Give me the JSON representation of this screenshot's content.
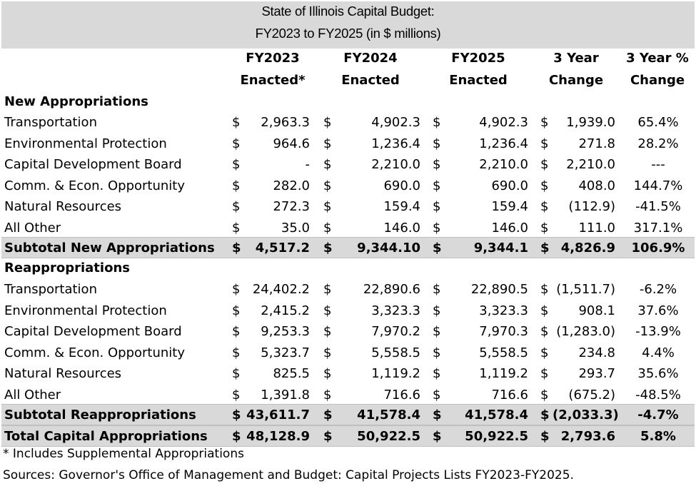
{
  "title_line1": "State of Illinois Capital Budget:",
  "title_line2": "FY2023 to FY2025 (in $ millions)",
  "headers": [
    {
      "line1": "FY2023",
      "line2": "Enacted*"
    },
    {
      "line1": "FY2024",
      "line2": "Enacted"
    },
    {
      "line1": "FY2025",
      "line2": "Enacted"
    },
    {
      "line1": "3 Year",
      "line2": "Change"
    },
    {
      "line1": "3 Year %",
      "line2": "Change"
    }
  ],
  "currency_symbol": "$",
  "section_new": "New Appropriations",
  "section_reapprop": "Reappropriations",
  "new_rows": [
    {
      "label": "Transportation",
      "fy23": "2,963.3",
      "fy24": "4,902.3",
      "fy25": "4,902.3",
      "chg": "1,939.0",
      "pct": "65.4%"
    },
    {
      "label": "Environmental Protection",
      "fy23": "964.6",
      "fy24": "1,236.4",
      "fy25": "1,236.4",
      "chg": "271.8",
      "pct": "28.2%"
    },
    {
      "label": "Capital Development Board",
      "fy23": "-",
      "fy24": "2,210.0",
      "fy25": "2,210.0",
      "chg": "2,210.0",
      "pct": "---"
    },
    {
      "label": "Comm. & Econ. Opportunity",
      "fy23": "282.0",
      "fy24": "690.0",
      "fy25": "690.0",
      "chg": "408.0",
      "pct": "144.7%"
    },
    {
      "label": "Natural Resources",
      "fy23": "272.3",
      "fy24": "159.4",
      "fy25": "159.4",
      "chg": "(112.9)",
      "pct": "-41.5%"
    },
    {
      "label": "All Other",
      "fy23": "35.0",
      "fy24": "146.0",
      "fy25": "146.0",
      "chg": "111.0",
      "pct": "317.1%"
    }
  ],
  "subtotal_new": {
    "label": "Subtotal New Appropriations",
    "fy23": "4,517.2",
    "fy24": "9,344.10",
    "fy25": "9,344.1",
    "chg": "4,826.9",
    "pct": "106.9%"
  },
  "reapprop_rows": [
    {
      "label": "Transportation",
      "fy23": "24,402.2",
      "fy24": "22,890.6",
      "fy25": "22,890.5",
      "chg": "(1,511.7)",
      "pct": "-6.2%"
    },
    {
      "label": "Environmental Protection",
      "fy23": "2,415.2",
      "fy24": "3,323.3",
      "fy25": "3,323.3",
      "chg": "908.1",
      "pct": "37.6%"
    },
    {
      "label": "Capital Development Board",
      "fy23": "9,253.3",
      "fy24": "7,970.2",
      "fy25": "7,970.3",
      "chg": "(1,283.0)",
      "pct": "-13.9%"
    },
    {
      "label": "Comm. & Econ. Opportunity",
      "fy23": "5,323.7",
      "fy24": "5,558.5",
      "fy25": "5,558.5",
      "chg": "234.8",
      "pct": "4.4%"
    },
    {
      "label": "Natural Resources",
      "fy23": "825.5",
      "fy24": "1,119.2",
      "fy25": "1,119.2",
      "chg": "293.7",
      "pct": "35.6%"
    },
    {
      "label": "All Other",
      "fy23": "1,391.8",
      "fy24": "716.6",
      "fy25": "716.6",
      "chg": "(675.2)",
      "pct": "-48.5%"
    }
  ],
  "subtotal_reapprop": {
    "label": "Subtotal Reappropriations",
    "fy23": "43,611.7",
    "fy24": "41,578.4",
    "fy25": "41,578.4",
    "chg": "(2,033.3)",
    "pct": "-4.7%"
  },
  "total": {
    "label": "Total Capital Appropriations",
    "fy23": "48,128.9",
    "fy24": "50,922.5",
    "fy25": "50,922.5",
    "chg": "2,793.6",
    "pct": "5.8%"
  },
  "footnote": "* Includes Supplemental Appropriations",
  "sources": "Sources: Governor's Office of Management and Budget: Capital Projects Lists FY2023-FY2025."
}
